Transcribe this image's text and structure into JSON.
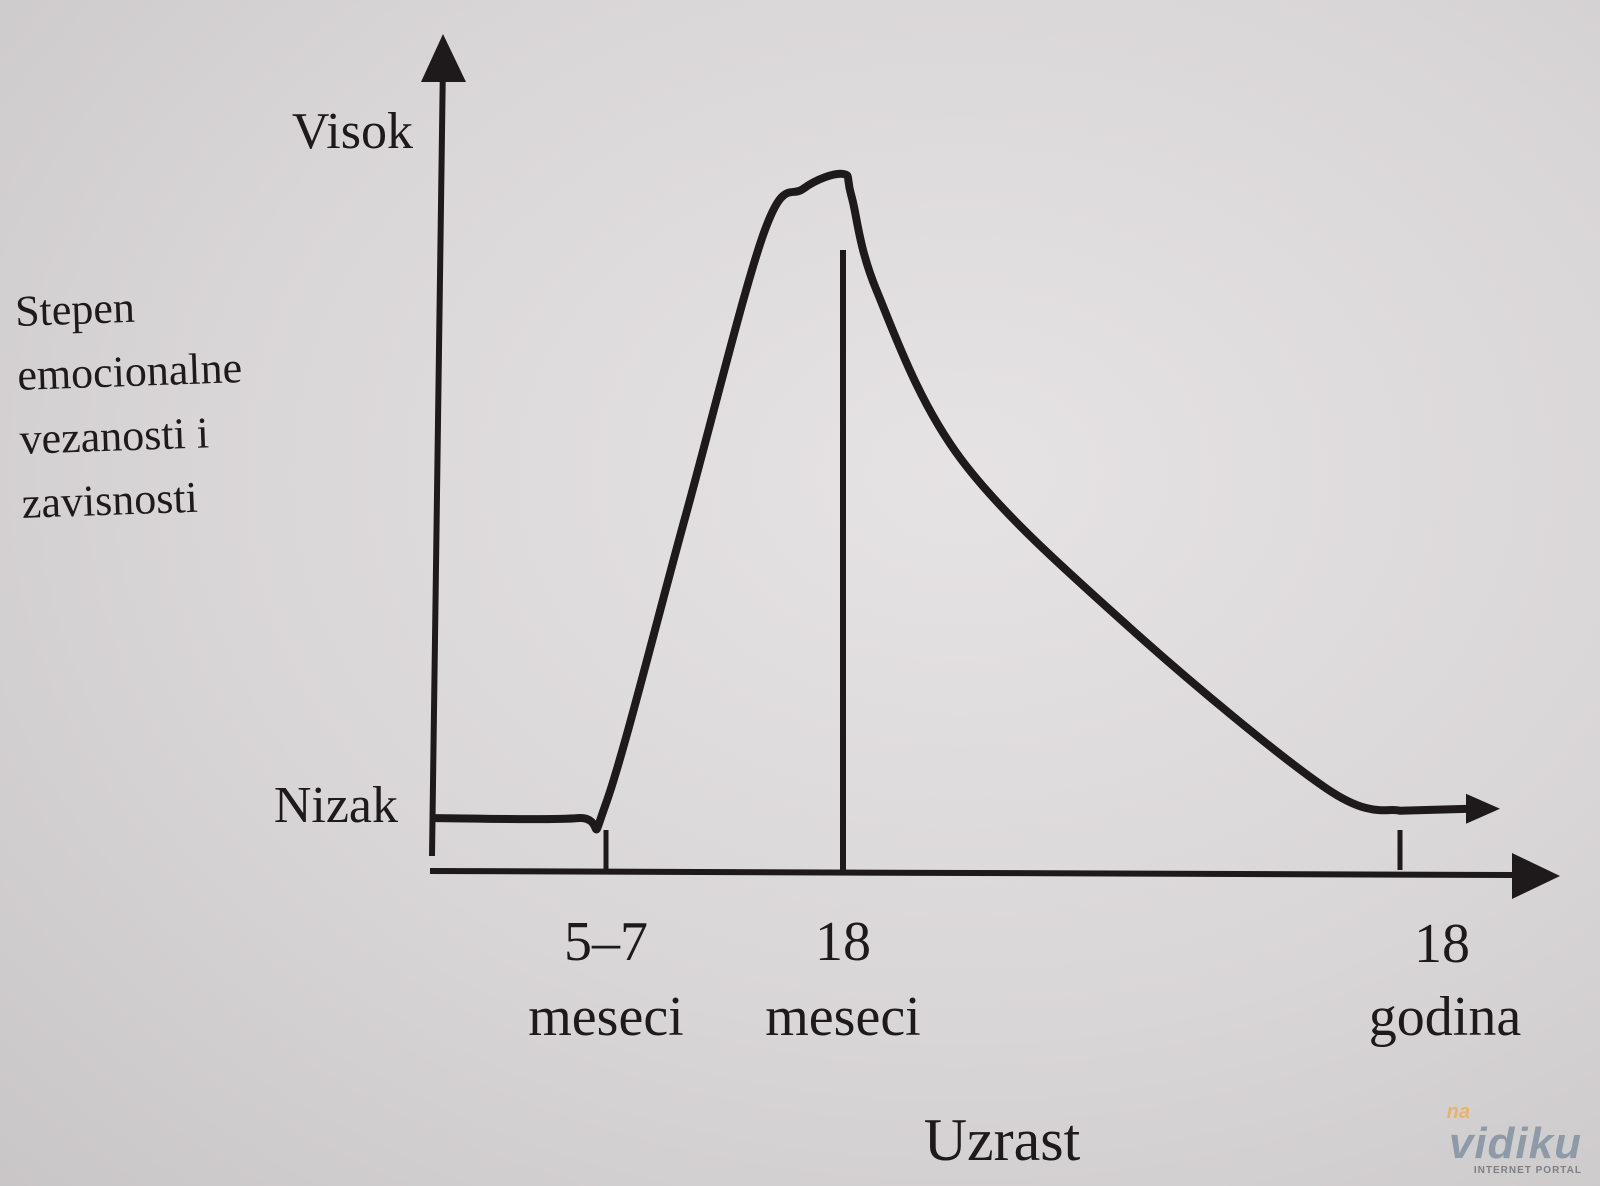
{
  "chart_data": {
    "type": "line",
    "title": "",
    "ylabel_lines": [
      "Stepen",
      "emocionalne",
      "vezanosti i",
      "zavisnosti"
    ],
    "xlabel": "Uzrast",
    "y_high_label": "Visok",
    "y_low_label": "Nizak",
    "x_ticks": [
      {
        "line1": "5–7",
        "line2": "meseci",
        "months": 6
      },
      {
        "line1": "18",
        "line2": "meseci",
        "months": 18
      },
      {
        "line1": "18",
        "line2": "godina",
        "months": 216
      }
    ],
    "marker_line": {
      "months": 18
    },
    "series": [
      {
        "points": [
          {
            "months": 0,
            "level": 0.06
          },
          {
            "months": 5,
            "level": 0.06
          },
          {
            "months": 6,
            "level": 0.08
          },
          {
            "months": 10,
            "level": 0.47
          },
          {
            "months": 14,
            "level": 0.86
          },
          {
            "months": 16,
            "level": 0.92
          },
          {
            "months": 18,
            "level": 0.94
          },
          {
            "months": 21,
            "level": 0.91
          },
          {
            "months": 30,
            "level": 0.78
          },
          {
            "months": 60,
            "level": 0.55
          },
          {
            "months": 120,
            "level": 0.32
          },
          {
            "months": 190,
            "level": 0.1
          },
          {
            "months": 216,
            "level": 0.07
          }
        ]
      }
    ]
  },
  "watermark": {
    "prefix": "na",
    "name": "vidiku",
    "sub": "INTERNET PORTAL"
  }
}
